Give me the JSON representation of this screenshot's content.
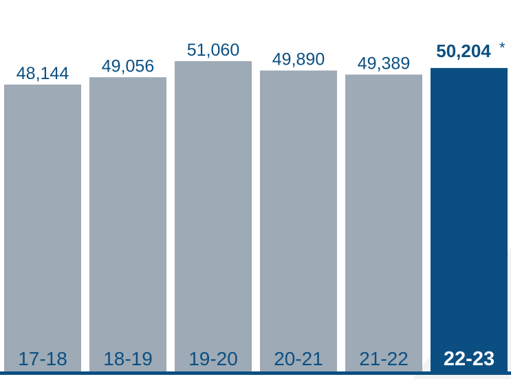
{
  "chart_data": {
    "type": "bar",
    "categories": [
      "17-18",
      "18-19",
      "19-20",
      "20-21",
      "21-22",
      "22-23"
    ],
    "values": [
      48144,
      49056,
      51060,
      49890,
      49389,
      50204
    ],
    "value_labels": [
      "48,144",
      "49,056",
      "51,060",
      "49,890",
      "49,389",
      "50,204"
    ],
    "highlight_index": 5,
    "highlight_marker": "*",
    "title": "",
    "xlabel": "",
    "ylabel": "",
    "ylim": [
      0,
      52000
    ],
    "grid": false,
    "legend": "none",
    "colors": {
      "bar": "#9eaab5",
      "highlight_bar": "#0b4f82",
      "label_text": "#0b4f82",
      "highlight_label_text": "#ffffff",
      "baseline": "#0b4f82",
      "background": "#ffffff"
    }
  }
}
